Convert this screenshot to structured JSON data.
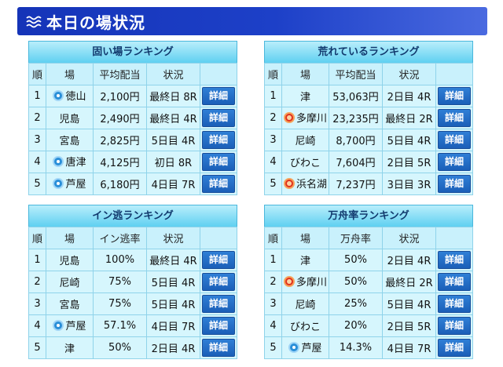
{
  "header": {
    "title": "本日の場状況"
  },
  "panels": [
    {
      "title": "固い場ランキング",
      "columns": [
        "順",
        "場",
        "平均配当",
        "状況",
        ""
      ],
      "rows": [
        {
          "rank": "1",
          "venue": "徳山",
          "badge": "blue",
          "value": "2,100円",
          "status": "最終日 8R",
          "button": "詳細"
        },
        {
          "rank": "2",
          "venue": "児島",
          "badge": "",
          "value": "2,490円",
          "status": "最終日 4R",
          "button": "詳細"
        },
        {
          "rank": "3",
          "venue": "宮島",
          "badge": "",
          "value": "2,825円",
          "status": "5日目 4R",
          "button": "詳細"
        },
        {
          "rank": "4",
          "venue": "唐津",
          "badge": "blue",
          "value": "4,125円",
          "status": "初日 8R",
          "button": "詳細"
        },
        {
          "rank": "5",
          "venue": "芦屋",
          "badge": "blue",
          "value": "6,180円",
          "status": "4日目 7R",
          "button": "詳細"
        }
      ]
    },
    {
      "title": "荒れているランキング",
      "columns": [
        "順",
        "場",
        "平均配当",
        "状況",
        ""
      ],
      "rows": [
        {
          "rank": "1",
          "venue": "津",
          "badge": "",
          "value": "53,063円",
          "status": "2日目 4R",
          "button": "詳細"
        },
        {
          "rank": "2",
          "venue": "多摩川",
          "badge": "red",
          "value": "23,235円",
          "status": "最終日 2R",
          "button": "詳細"
        },
        {
          "rank": "3",
          "venue": "尼崎",
          "badge": "",
          "value": "8,700円",
          "status": "5日目 4R",
          "button": "詳細"
        },
        {
          "rank": "4",
          "venue": "びわこ",
          "badge": "",
          "value": "7,604円",
          "status": "2日目 5R",
          "button": "詳細"
        },
        {
          "rank": "5",
          "venue": "浜名湖",
          "badge": "red",
          "value": "7,237円",
          "status": "3日目 3R",
          "button": "詳細"
        }
      ]
    },
    {
      "title": "イン逃ランキング",
      "columns": [
        "順",
        "場",
        "イン逃率",
        "状況",
        ""
      ],
      "rows": [
        {
          "rank": "1",
          "venue": "児島",
          "badge": "",
          "value": "100%",
          "status": "最終日 4R",
          "button": "詳細"
        },
        {
          "rank": "2",
          "venue": "尼崎",
          "badge": "",
          "value": "75%",
          "status": "5日目 4R",
          "button": "詳細"
        },
        {
          "rank": "3",
          "venue": "宮島",
          "badge": "",
          "value": "75%",
          "status": "5日目 4R",
          "button": "詳細"
        },
        {
          "rank": "4",
          "venue": "芦屋",
          "badge": "blue",
          "value": "57.1%",
          "status": "4日目 7R",
          "button": "詳細"
        },
        {
          "rank": "5",
          "venue": "津",
          "badge": "",
          "value": "50%",
          "status": "2日目 4R",
          "button": "詳細"
        }
      ]
    },
    {
      "title": "万舟率ランキング",
      "columns": [
        "順",
        "場",
        "万舟率",
        "状況",
        ""
      ],
      "rows": [
        {
          "rank": "1",
          "venue": "津",
          "badge": "",
          "value": "50%",
          "status": "2日目 4R",
          "button": "詳細"
        },
        {
          "rank": "2",
          "venue": "多摩川",
          "badge": "red",
          "value": "50%",
          "status": "最終日 2R",
          "button": "詳細"
        },
        {
          "rank": "3",
          "venue": "尼崎",
          "badge": "",
          "value": "25%",
          "status": "5日目 4R",
          "button": "詳細"
        },
        {
          "rank": "4",
          "venue": "びわこ",
          "badge": "",
          "value": "20%",
          "status": "2日目 5R",
          "button": "詳細"
        },
        {
          "rank": "5",
          "venue": "芦屋",
          "badge": "blue",
          "value": "14.3%",
          "status": "4日目 7R",
          "button": "詳細"
        }
      ]
    }
  ]
}
